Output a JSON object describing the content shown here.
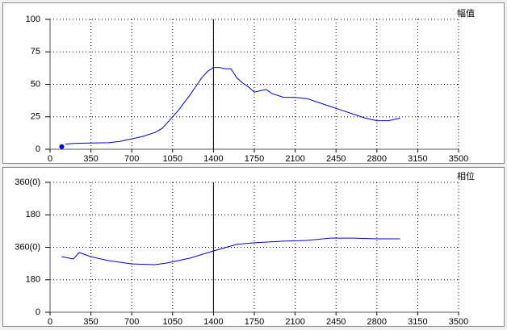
{
  "chart_data": [
    {
      "type": "line",
      "title": "幅值",
      "xlim": [
        0,
        3500
      ],
      "xticks": [
        0,
        350,
        700,
        1050,
        1400,
        1750,
        2100,
        2450,
        2800,
        3150,
        3500
      ],
      "ylim": [
        0,
        100
      ],
      "yticks": [
        0,
        25,
        50,
        75,
        100
      ],
      "grid": true,
      "cursor_x": 1400,
      "marker_x": 100,
      "marker_y": 2,
      "x": [
        130,
        200,
        350,
        500,
        600,
        700,
        800,
        900,
        960,
        1000,
        1100,
        1200,
        1300,
        1350,
        1400,
        1450,
        1500,
        1550,
        1600,
        1650,
        1700,
        1750,
        1800,
        1850,
        1900,
        2000,
        2100,
        2200,
        2300,
        2400,
        2500,
        2600,
        2700,
        2800,
        2900,
        2950,
        3000
      ],
      "series": [
        {
          "color": "#0000cc",
          "values": [
            4,
            4.5,
            4.8,
            5,
            6,
            8,
            10,
            13,
            16,
            20,
            30,
            42,
            55,
            60,
            63,
            63,
            62,
            62,
            55,
            51,
            48,
            44,
            45,
            46,
            43,
            40,
            40,
            39,
            36,
            33,
            30,
            27,
            24,
            22,
            22,
            23,
            24
          ]
        }
      ]
    },
    {
      "type": "line",
      "title": "相位",
      "xlim": [
        0,
        3500
      ],
      "xticks": [
        0,
        350,
        700,
        1050,
        1400,
        1750,
        2100,
        2450,
        2800,
        3150,
        3500
      ],
      "ylim": [
        0,
        720
      ],
      "yticks": [
        0,
        {
          "value": 180,
          "label": "180"
        },
        {
          "value": 360,
          "label": "360(0)"
        },
        {
          "value": 540,
          "label": "180"
        },
        {
          "value": 720,
          "label": "360(0)"
        }
      ],
      "grid": true,
      "cursor_x": 1400,
      "x": [
        100,
        200,
        250,
        350,
        500,
        700,
        900,
        1000,
        1200,
        1400,
        1600,
        1750,
        2000,
        2200,
        2400,
        2600,
        2800,
        3000
      ],
      "series": [
        {
          "color": "#0000cc",
          "values": [
            308,
            295,
            331,
            308,
            286,
            268,
            264,
            273,
            300,
            340,
            376,
            385,
            394,
            398,
            411,
            411,
            407,
            407
          ]
        }
      ]
    }
  ]
}
